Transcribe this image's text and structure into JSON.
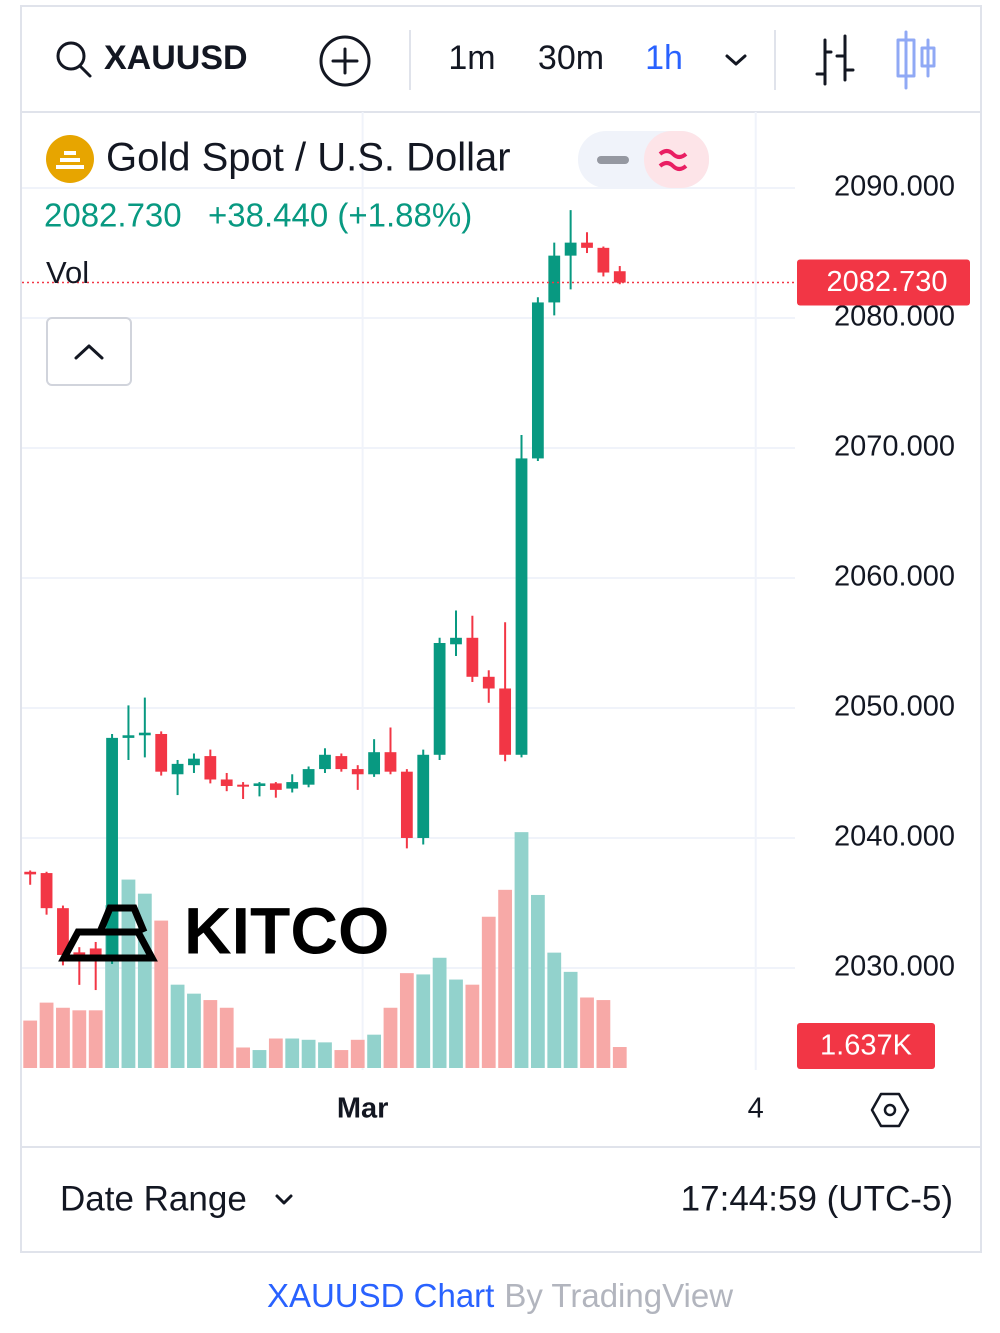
{
  "ui": {
    "symbol": "XAUUSD",
    "intervals": [
      "1m",
      "30m",
      "1h"
    ],
    "instrument": "Gold Spot / U.S. Dollar",
    "change": "+38.440 (+1.88%)",
    "logo": "KITCO",
    "date_range": "Date Range",
    "clock": "17:44:59 (UTC-5)",
    "footer_link": "XAUUSD Chart",
    "footer_by": "By TradingView"
  },
  "chart_data": {
    "type": "candlestick",
    "up_color": "#089981",
    "down_color": "#f23645",
    "x": [
      0,
      1,
      2,
      3,
      4,
      5,
      6,
      7,
      8,
      9,
      10,
      11,
      12,
      13,
      14,
      15,
      16,
      17,
      18,
      19,
      20,
      21,
      22,
      23,
      24,
      25,
      26,
      27,
      28,
      29,
      30,
      31,
      32,
      33,
      34,
      35,
      36
    ],
    "open": [
      2037.4,
      2037.3,
      2034.6,
      2031.2,
      2031.5,
      2030.6,
      2047.7,
      2047.9,
      2048.0,
      2044.9,
      2045.6,
      2046.3,
      2044.5,
      2044.1,
      2044.0,
      2044.2,
      2043.8,
      2044.1,
      2045.3,
      2046.3,
      2045.3,
      2044.9,
      2046.6,
      2045.1,
      2040.0,
      2046.4,
      2054.9,
      2055.4,
      2052.4,
      2051.5,
      2046.4,
      2069.2,
      2081.2,
      2084.8,
      2085.8,
      2085.4,
      2083.6
    ],
    "high": [
      2037.5,
      2037.4,
      2034.8,
      2031.6,
      2032.0,
      2048.0,
      2050.2,
      2050.8,
      2048.2,
      2046.0,
      2046.5,
      2046.8,
      2045.0,
      2044.3,
      2044.3,
      2044.3,
      2044.9,
      2045.5,
      2046.9,
      2046.5,
      2045.6,
      2047.6,
      2048.5,
      2045.3,
      2046.8,
      2055.4,
      2057.5,
      2057.1,
      2052.9,
      2056.6,
      2071.0,
      2081.6,
      2085.8,
      2088.3,
      2086.6,
      2085.5,
      2084.0
    ],
    "low": [
      2036.4,
      2034.1,
      2030.2,
      2028.7,
      2028.3,
      2030.3,
      2046.0,
      2046.2,
      2044.8,
      2043.3,
      2045.0,
      2044.2,
      2043.6,
      2043.0,
      2043.2,
      2043.1,
      2043.5,
      2043.9,
      2045.0,
      2045.1,
      2043.7,
      2044.7,
      2044.9,
      2039.2,
      2039.5,
      2046.0,
      2054.0,
      2052.0,
      2050.4,
      2045.9,
      2046.2,
      2069.0,
      2080.2,
      2082.2,
      2085.0,
      2083.2,
      2082.6
    ],
    "close": [
      2037.2,
      2034.6,
      2031.0,
      2030.8,
      2030.5,
      2047.7,
      2047.9,
      2048.1,
      2045.1,
      2045.7,
      2046.1,
      2044.5,
      2044.0,
      2044.0,
      2044.2,
      2043.7,
      2044.3,
      2045.3,
      2046.4,
      2045.3,
      2044.9,
      2046.6,
      2045.1,
      2040.0,
      2046.4,
      2055.0,
      2055.4,
      2052.4,
      2051.5,
      2046.4,
      2069.2,
      2081.2,
      2084.8,
      2085.8,
      2085.4,
      2083.5,
      2082.73
    ],
    "close_label": "2082.730",
    "volume": {
      "name": "Vol",
      "up_color": "#92d2cc",
      "down_color": "#f7a9a7",
      "last_label": "1.637K",
      "values": [
        3700,
        5100,
        4700,
        4500,
        4500,
        12700,
        14700,
        13600,
        11500,
        6500,
        5800,
        5300,
        4700,
        1600,
        1400,
        2300,
        2300,
        2200,
        2000,
        1400,
        2200,
        2600,
        4700,
        7400,
        7300,
        8600,
        6900,
        6500,
        11800,
        13900,
        18400,
        13500,
        9000,
        7500,
        5500,
        5300,
        1637
      ]
    },
    "xlim": [
      -0.5,
      46.7
    ],
    "xticks": [
      {
        "value": 20.3,
        "label": "Mar"
      },
      {
        "value": 44.3,
        "label": "4"
      }
    ],
    "ylim": [
      2022.15,
      2095.85
    ],
    "yticks": [
      {
        "value": 2030,
        "label": "2030.000"
      },
      {
        "value": 2040,
        "label": "2040.000"
      },
      {
        "value": 2050,
        "label": "2050.000"
      },
      {
        "value": 2060,
        "label": "2060.000"
      },
      {
        "value": 2070,
        "label": "2070.000"
      },
      {
        "value": 2080,
        "label": "2080.000"
      },
      {
        "value": 2090,
        "label": "2090.000"
      }
    ],
    "y2lim": [
      0,
      22000
    ],
    "grid": true
  }
}
